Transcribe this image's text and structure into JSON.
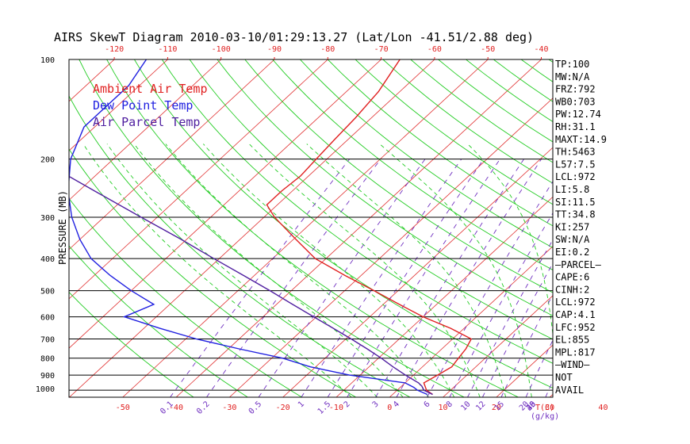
{
  "colors": {
    "isotherm": "#e03030",
    "dry_adiabat": "#22cc22",
    "moist_adiabat": "#22cc22",
    "mixing_ratio": "#7030c0",
    "temperature": "#e02020",
    "dewpoint": "#2020e0",
    "parcel": "#5020a0",
    "frame": "#000000",
    "isobar": "#000000",
    "top_ticks": "#e02020"
  },
  "chart_data": {
    "type": "line",
    "title": "AIRS SkewT Diagram 2010-03-10/01:29:13.27 (Lat/Lon -41.51/2.88 deg)",
    "ylabel": "PRESSURE (MB)",
    "x_unit_label": "T(C)",
    "mixing_ratio_unit": "(g/kg)",
    "ylim": [
      1050,
      100
    ],
    "y_scale": "log",
    "skew_deg_per_decade": 67,
    "pressure_ticks": [
      100,
      200,
      300,
      400,
      500,
      600,
      700,
      800,
      900,
      1000
    ],
    "isobar_lines": [
      200,
      300,
      400,
      500,
      600,
      700,
      800,
      900,
      1000
    ],
    "bottom_temp_ticks": [
      -50,
      -40,
      -30,
      -20,
      -10,
      0,
      10,
      20,
      30,
      40
    ],
    "top_temp_ticks": [
      -120,
      -110,
      -100,
      -90,
      -80,
      -70,
      -60,
      -50,
      -40
    ],
    "isotherms": [
      -160,
      -150,
      -140,
      -130,
      -120,
      -110,
      -100,
      -90,
      -80,
      -70,
      -60,
      -50,
      -40,
      -30,
      -20,
      -10,
      0,
      10,
      20,
      30,
      40
    ],
    "dry_adiabats": [
      -40,
      -30,
      -20,
      -10,
      0,
      10,
      20,
      30,
      40,
      50,
      60,
      70,
      80,
      90,
      100,
      110,
      120,
      130,
      140,
      150,
      160,
      170,
      180,
      190
    ],
    "moist_adiabats": [
      -10,
      -5,
      0,
      5,
      10,
      15,
      20,
      25,
      30,
      35
    ],
    "mixing_ratio_labels": [
      "0.1",
      "0.2",
      "0.5",
      "1",
      "1.5",
      "2",
      "3",
      "4",
      "6",
      "8",
      "10",
      "12",
      "15",
      "20",
      "25",
      "30",
      "40"
    ],
    "mixing_ratio_values": [
      0.1,
      0.2,
      0.5,
      1,
      1.5,
      2,
      3,
      4,
      6,
      8,
      10,
      12,
      15,
      20,
      25,
      30,
      40
    ],
    "legend": [
      {
        "label": "Ambient Air Temp",
        "key": "temperature"
      },
      {
        "label": "Dew Point Temp",
        "key": "dewpoint"
      },
      {
        "label": "Air Parcel Temp",
        "key": "parcel"
      }
    ],
    "series": [
      {
        "name": "Ambient Air Temp",
        "key": "temperature",
        "points": [
          [
            1030,
            7.5
          ],
          [
            1000,
            5.5
          ],
          [
            950,
            3.5
          ],
          [
            900,
            4.5
          ],
          [
            850,
            5.5
          ],
          [
            800,
            5.0
          ],
          [
            750,
            4.5
          ],
          [
            700,
            3.5
          ],
          [
            650,
            -2.5
          ],
          [
            600,
            -10
          ],
          [
            550,
            -17
          ],
          [
            500,
            -24.5
          ],
          [
            450,
            -33
          ],
          [
            400,
            -42
          ],
          [
            350,
            -49.5
          ],
          [
            300,
            -58
          ],
          [
            275,
            -62
          ],
          [
            250,
            -62
          ],
          [
            225,
            -61.5
          ],
          [
            200,
            -62
          ],
          [
            175,
            -62.5
          ],
          [
            150,
            -63
          ],
          [
            125,
            -64
          ],
          [
            100,
            -66.5
          ]
        ]
      },
      {
        "name": "Dew Point Temp",
        "key": "dewpoint",
        "points": [
          [
            1030,
            6.5
          ],
          [
            1000,
            3.8
          ],
          [
            980,
            2.5
          ],
          [
            950,
            0.0
          ],
          [
            900,
            -12
          ],
          [
            850,
            -21
          ],
          [
            800,
            -28
          ],
          [
            750,
            -38
          ],
          [
            700,
            -48
          ],
          [
            650,
            -57
          ],
          [
            600,
            -66
          ],
          [
            550,
            -63
          ],
          [
            500,
            -70
          ],
          [
            450,
            -77
          ],
          [
            400,
            -84
          ],
          [
            350,
            -90
          ],
          [
            300,
            -96
          ],
          [
            250,
            -102
          ],
          [
            200,
            -108
          ],
          [
            160,
            -112
          ],
          [
            120,
            -112
          ],
          [
            100,
            -114
          ]
        ]
      },
      {
        "name": "Air Parcel Temp",
        "key": "parcel",
        "points": [
          [
            1030,
            7.5
          ],
          [
            1000,
            5.0
          ],
          [
            972,
            3.8
          ],
          [
            950,
            2.5
          ],
          [
            900,
            -1.5
          ],
          [
            850,
            -5.5
          ],
          [
            800,
            -9.5
          ],
          [
            750,
            -14
          ],
          [
            700,
            -19
          ],
          [
            650,
            -24.5
          ],
          [
            600,
            -30.5
          ],
          [
            550,
            -37
          ],
          [
            500,
            -44
          ],
          [
            450,
            -52
          ],
          [
            400,
            -61
          ],
          [
            350,
            -71
          ],
          [
            300,
            -83
          ],
          [
            250,
            -97
          ],
          [
            200,
            -114
          ],
          [
            150,
            -138
          ],
          [
            100,
            -175
          ]
        ]
      }
    ],
    "indices": [
      "TP:100",
      "MW:N/A",
      "FRZ:792",
      "WB0:703",
      "PW:12.74",
      "RH:31.1",
      "MAXT:14.9",
      "TH:5463",
      "L57:7.5",
      "LCL:972",
      "LI:5.8",
      "SI:11.5",
      "TT:34.8",
      "KI:257",
      "SW:N/A",
      "EI:0.2",
      "—PARCEL—",
      "CAPE:6",
      "CINH:2",
      "LCL:972",
      "CAP:4.1",
      "LFC:952",
      "EL:855",
      "MPL:817",
      "—WIND—",
      "NOT",
      "AVAIL"
    ]
  }
}
